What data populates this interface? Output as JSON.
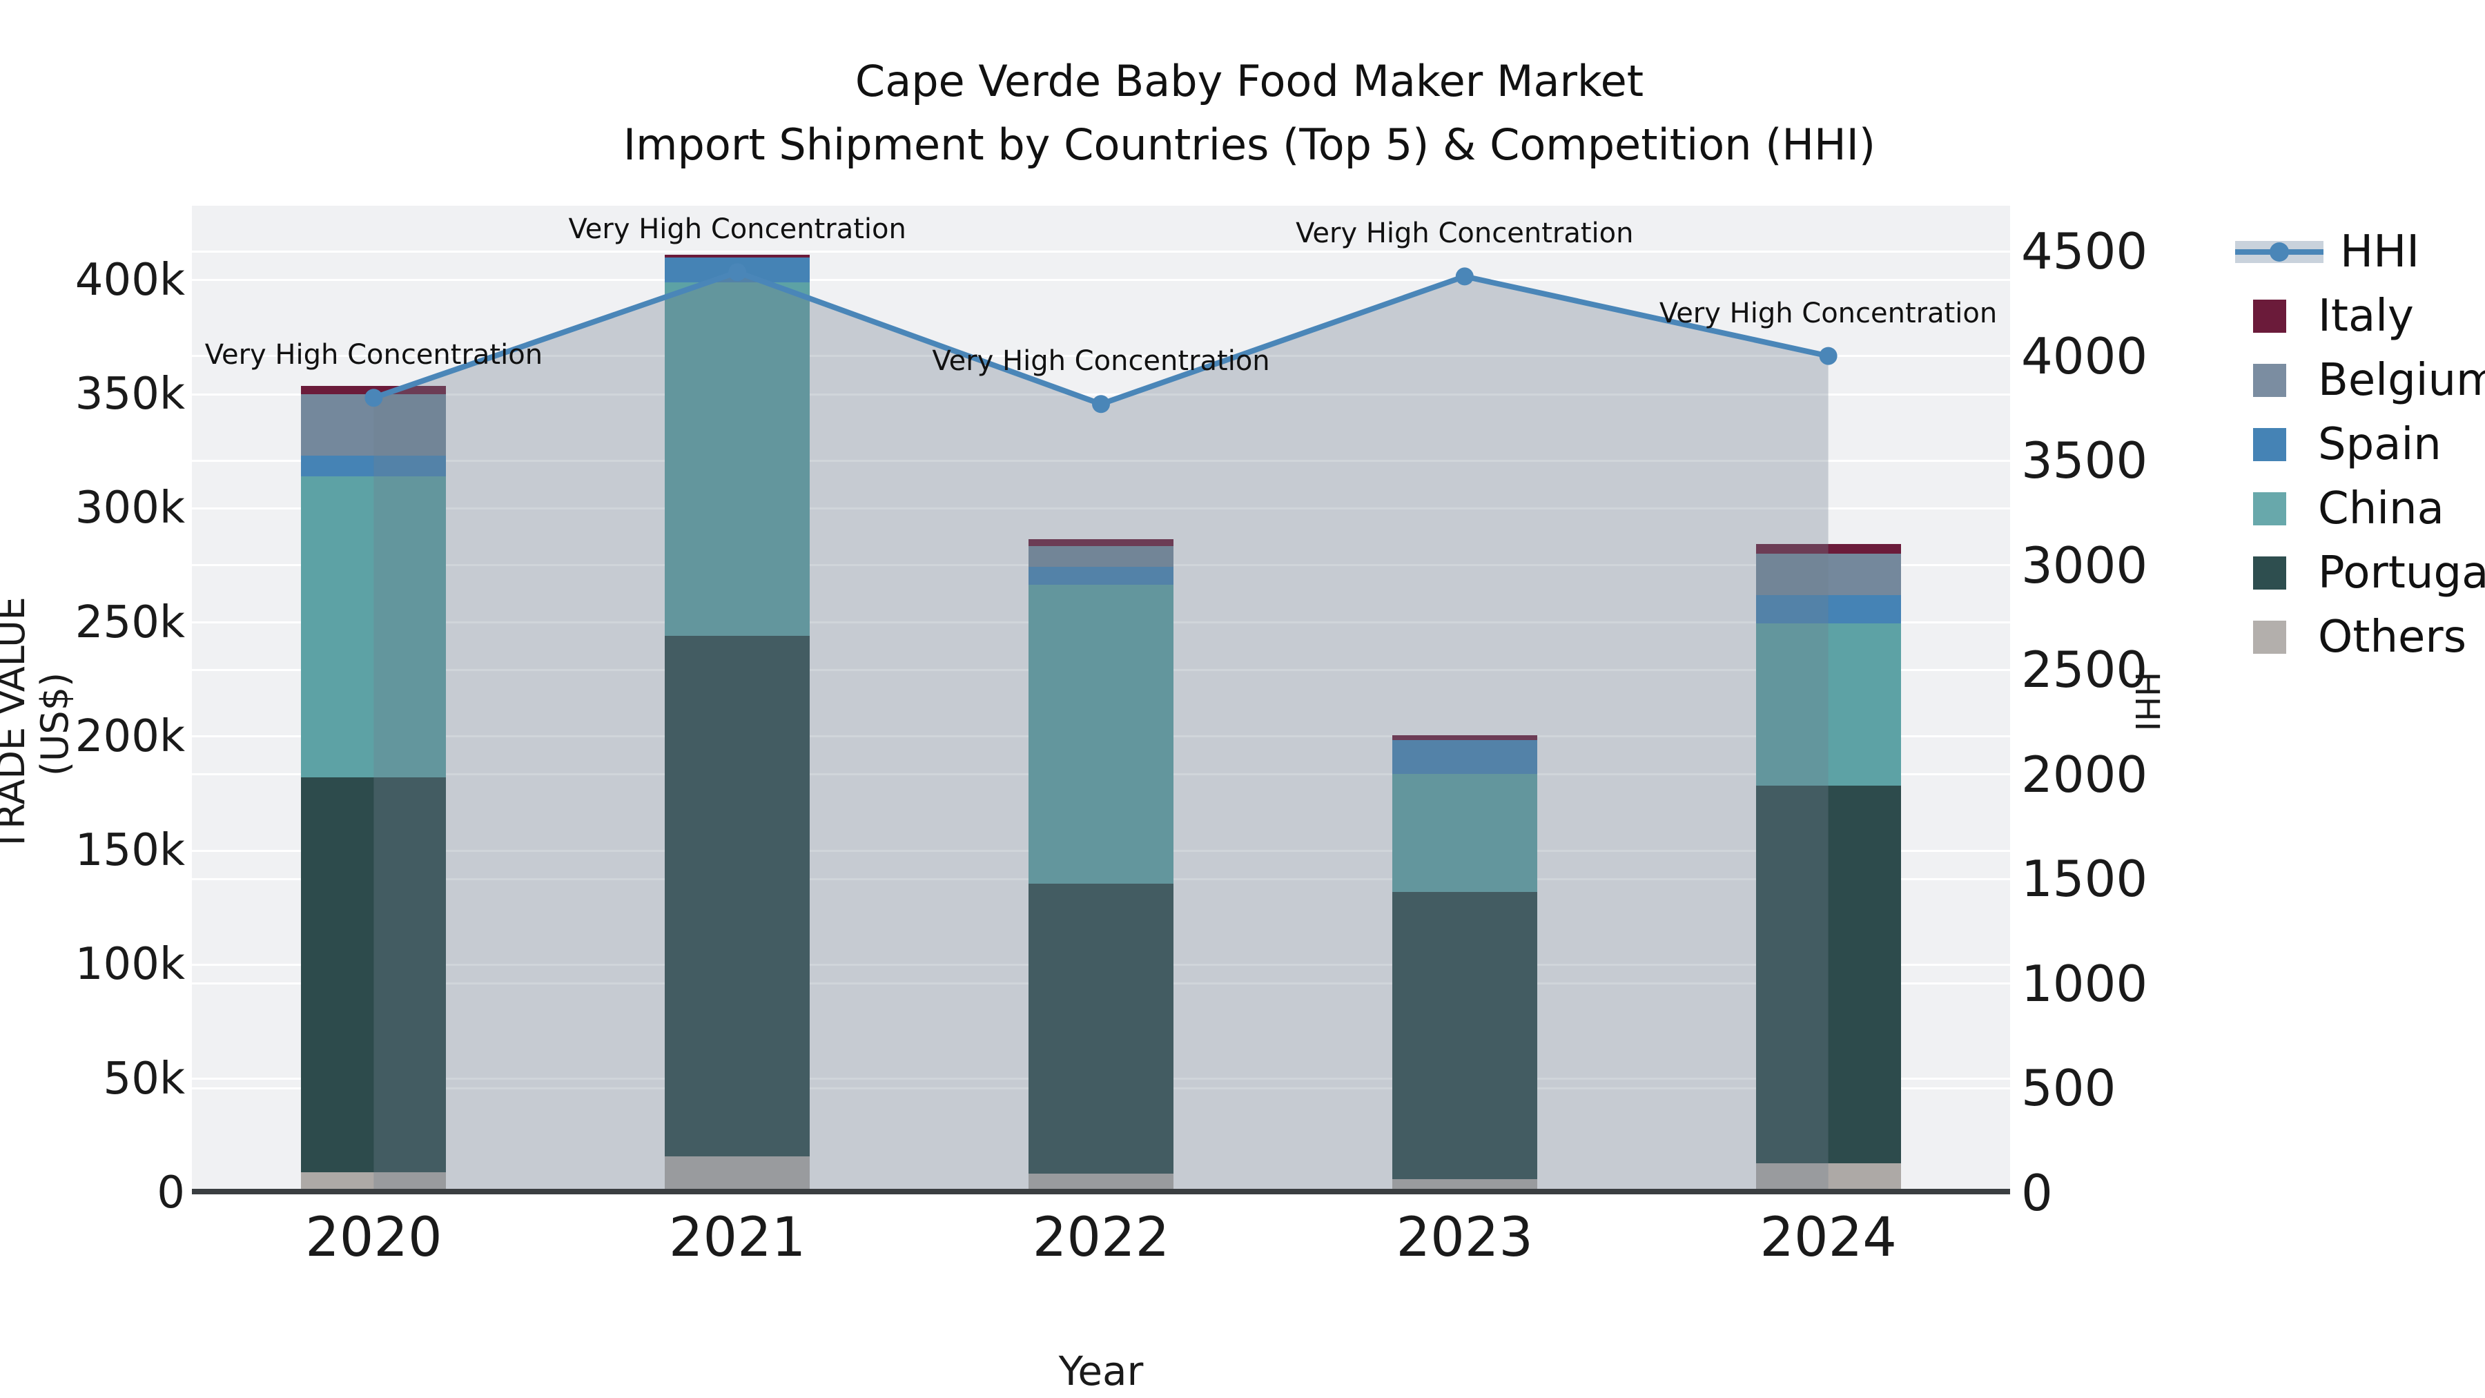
{
  "title": {
    "line1": "Cape Verde Baby Food Maker Market",
    "line2": "Import Shipment by Countries (Top 5) & Competition (HHI)"
  },
  "axes": {
    "left_title": "TRADE VALUE (US$)",
    "bottom_title": "Year",
    "right_title": "HHI",
    "left_ticks": [
      "0",
      "50k",
      "100k",
      "150k",
      "200k",
      "250k",
      "300k",
      "350k",
      "400k"
    ],
    "right_ticks": [
      "0",
      "500",
      "1000",
      "1500",
      "2000",
      "2500",
      "3000",
      "3500",
      "4000",
      "4500"
    ]
  },
  "annotation_text": "Very High Concentration",
  "legend": {
    "items": [
      {
        "label": "HHI",
        "type": "line",
        "color": "#4a86b8"
      },
      {
        "label": "Italy",
        "type": "box",
        "color": "#6b1b3a"
      },
      {
        "label": "Belgium",
        "type": "box",
        "color": "#7b8da1"
      },
      {
        "label": "Spain",
        "type": "box",
        "color": "#4583b5"
      },
      {
        "label": "China",
        "type": "box",
        "color": "#68a8ab"
      },
      {
        "label": "Portugal",
        "type": "box",
        "color": "#2e4e4f"
      },
      {
        "label": "Others",
        "type": "box",
        "color": "#b3afac"
      }
    ]
  },
  "colors": {
    "hhi_line": "#4a86b8",
    "hhi_fill": "rgba(112,128,144,0.33)",
    "plot_background": "#f0f1f3",
    "gridline": "#ffffff",
    "x_spine": "#3a3e41"
  },
  "chart_data": {
    "type": "bar",
    "subtype": "stacked-bars-with-line-overlay",
    "title": "Cape Verde Baby Food Maker Market — Import Shipment by Countries (Top 5) & Competition (HHI)",
    "xlabel": "Year",
    "ylabel_left": "TRADE VALUE (US$)",
    "ylabel_right": "HHI",
    "categories": [
      "2020",
      "2021",
      "2022",
      "2023",
      "2024"
    ],
    "series": [
      {
        "name": "Others",
        "color": "#ada9a6",
        "values": [
          9000,
          16000,
          8500,
          6000,
          13000
        ]
      },
      {
        "name": "Portugal",
        "color": "#2d4b4c",
        "values": [
          173000,
          228000,
          127000,
          126000,
          165500
        ]
      },
      {
        "name": "China",
        "color": "#5da2a5",
        "values": [
          132000,
          155000,
          131000,
          51500,
          71000
        ]
      },
      {
        "name": "Spain",
        "color": "#4583b5",
        "values": [
          9000,
          11000,
          8000,
          15000,
          12500
        ]
      },
      {
        "name": "Belgium",
        "color": "#74889c",
        "values": [
          27000,
          0,
          9000,
          0,
          18000
        ]
      },
      {
        "name": "Italy",
        "color": "#6b1b3a",
        "values": [
          3500,
          1000,
          3000,
          2000,
          4500
        ]
      }
    ],
    "line_series": {
      "name": "HHI",
      "values": [
        3800,
        4400,
        3770,
        4380,
        4000
      ],
      "annotations": [
        "Very High Concentration",
        "Very High Concentration",
        "Very High Concentration",
        "Very High Concentration",
        "Very High Concentration"
      ],
      "fill_to_zero": true
    },
    "left_axis_ticks_value": [
      0,
      50000,
      100000,
      150000,
      200000,
      250000,
      300000,
      350000,
      400000
    ],
    "right_axis_ticks_value": [
      0,
      500,
      1000,
      1500,
      2000,
      2500,
      3000,
      3500,
      4000,
      4500
    ],
    "grid": true,
    "legend_position": "right"
  }
}
